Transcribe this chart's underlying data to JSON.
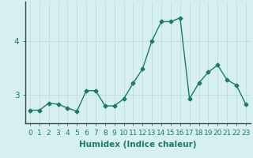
{
  "x": [
    0,
    1,
    2,
    3,
    4,
    5,
    6,
    7,
    8,
    9,
    10,
    11,
    12,
    13,
    14,
    15,
    16,
    17,
    18,
    19,
    20,
    21,
    22,
    23
  ],
  "y": [
    2.72,
    2.72,
    2.85,
    2.83,
    2.76,
    2.7,
    3.08,
    3.08,
    2.8,
    2.8,
    2.93,
    3.22,
    3.48,
    4.0,
    4.35,
    4.35,
    4.42,
    2.93,
    3.22,
    3.42,
    3.55,
    3.28,
    3.18,
    2.83
  ],
  "xlabel": "Humidex (Indice chaleur)",
  "xlim": [
    -0.5,
    23.5
  ],
  "ylim": [
    2.48,
    4.72
  ],
  "yticks": [
    3,
    4
  ],
  "xticks": [
    0,
    1,
    2,
    3,
    4,
    5,
    6,
    7,
    8,
    9,
    10,
    11,
    12,
    13,
    14,
    15,
    16,
    17,
    18,
    19,
    20,
    21,
    22,
    23
  ],
  "line_color": "#1a7a6e",
  "marker": "D",
  "marker_size": 2.5,
  "bg_color": "#d6f0f0",
  "grid_color": "#c0dede",
  "tick_label_size": 6.5,
  "xlabel_size": 7.5,
  "line_width": 1.0
}
